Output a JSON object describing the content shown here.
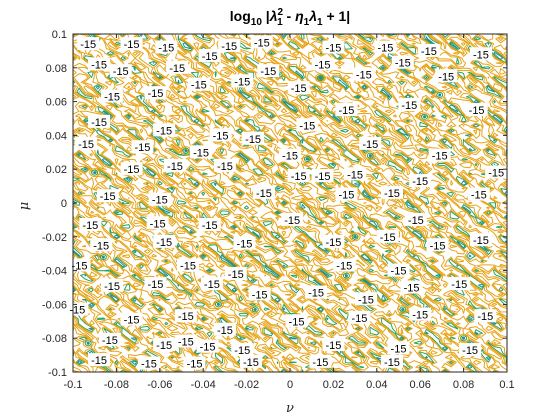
{
  "chart_data": {
    "type": "contour",
    "title": "log10 |λ1^2 - η1λ1 + 1|",
    "title_parts": {
      "log": "log",
      "log_sub": "10",
      "bar_open": " |",
      "lambda": "λ",
      "sub1": "1",
      "sup2": "2",
      "minus": " - ",
      "eta": "η",
      "sub1b": "1",
      "lambda2": "λ",
      "sub1c": "1",
      "rest": " + 1|"
    },
    "xlabel": "ν",
    "ylabel": "μ",
    "xlim": [
      -0.1,
      0.1
    ],
    "ylim": [
      -0.1,
      0.1
    ],
    "xticks": [
      "-0.1",
      "-0.08",
      "-0.06",
      "-0.04",
      "-0.02",
      "0",
      "0.02",
      "0.04",
      "0.06",
      "0.08",
      "0.1"
    ],
    "yticks": [
      "0.1",
      "0.08",
      "0.06",
      "0.04",
      "0.02",
      "0",
      "-0.02",
      "-0.04",
      "-0.06",
      "-0.08",
      "-0.1"
    ],
    "contour_level_label": "-15",
    "level_colors": {
      "low": "#1f8f8f",
      "mid": "#2ca25f",
      "high": "#e8a317"
    },
    "labels": [
      {
        "x": -0.093,
        "y": 0.094
      },
      {
        "x": -0.073,
        "y": 0.094
      },
      {
        "x": -0.057,
        "y": 0.092
      },
      {
        "x": -0.037,
        "y": 0.087
      },
      {
        "x": -0.028,
        "y": 0.093
      },
      {
        "x": -0.013,
        "y": 0.095
      },
      {
        "x": 0.02,
        "y": 0.092
      },
      {
        "x": 0.044,
        "y": 0.092
      },
      {
        "x": 0.064,
        "y": 0.09
      },
      {
        "x": 0.088,
        "y": 0.088
      },
      {
        "x": -0.088,
        "y": 0.082
      },
      {
        "x": -0.052,
        "y": 0.08
      },
      {
        "x": -0.042,
        "y": 0.07
      },
      {
        "x": -0.078,
        "y": 0.078
      },
      {
        "x": -0.01,
        "y": 0.078
      },
      {
        "x": 0.015,
        "y": 0.082
      },
      {
        "x": 0.034,
        "y": 0.076
      },
      {
        "x": 0.052,
        "y": 0.083
      },
      {
        "x": 0.072,
        "y": 0.075
      },
      {
        "x": -0.082,
        "y": 0.063
      },
      {
        "x": -0.062,
        "y": 0.065
      },
      {
        "x": -0.022,
        "y": 0.072
      },
      {
        "x": 0.004,
        "y": 0.068
      },
      {
        "x": -0.088,
        "y": 0.048
      },
      {
        "x": -0.058,
        "y": 0.043
      },
      {
        "x": -0.032,
        "y": 0.04
      },
      {
        "x": -0.017,
        "y": 0.038
      },
      {
        "x": 0.008,
        "y": 0.046
      },
      {
        "x": 0.026,
        "y": 0.055
      },
      {
        "x": 0.055,
        "y": 0.058
      },
      {
        "x": 0.086,
        "y": 0.055
      },
      {
        "x": -0.094,
        "y": 0.035
      },
      {
        "x": -0.068,
        "y": 0.033
      },
      {
        "x": -0.041,
        "y": 0.03
      },
      {
        "x": 0.0,
        "y": 0.028
      },
      {
        "x": 0.037,
        "y": 0.035
      },
      {
        "x": 0.069,
        "y": 0.028
      },
      {
        "x": -0.073,
        "y": 0.02
      },
      {
        "x": -0.053,
        "y": 0.022
      },
      {
        "x": -0.03,
        "y": 0.022
      },
      {
        "x": 0.004,
        "y": 0.016
      },
      {
        "x": 0.015,
        "y": 0.016
      },
      {
        "x": 0.03,
        "y": 0.017
      },
      {
        "x": 0.06,
        "y": 0.013
      },
      {
        "x": 0.095,
        "y": 0.018
      },
      {
        "x": -0.084,
        "y": 0.004
      },
      {
        "x": -0.06,
        "y": 0.002
      },
      {
        "x": -0.012,
        "y": 0.006
      },
      {
        "x": 0.026,
        "y": 0.005
      },
      {
        "x": 0.047,
        "y": 0.006
      },
      {
        "x": 0.087,
        "y": 0.005
      },
      {
        "x": -0.092,
        "y": -0.013
      },
      {
        "x": -0.061,
        "y": -0.012
      },
      {
        "x": -0.037,
        "y": -0.013
      },
      {
        "x": 0.001,
        "y": -0.01
      },
      {
        "x": 0.058,
        "y": -0.01
      },
      {
        "x": -0.087,
        "y": -0.025
      },
      {
        "x": -0.058,
        "y": -0.023
      },
      {
        "x": -0.021,
        "y": -0.024
      },
      {
        "x": 0.02,
        "y": -0.023
      },
      {
        "x": 0.045,
        "y": -0.02
      },
      {
        "x": 0.068,
        "y": -0.025
      },
      {
        "x": 0.088,
        "y": -0.022
      },
      {
        "x": -0.097,
        "y": -0.037
      },
      {
        "x": -0.047,
        "y": -0.037
      },
      {
        "x": -0.025,
        "y": -0.042
      },
      {
        "x": 0.025,
        "y": -0.037
      },
      {
        "x": 0.05,
        "y": -0.04
      },
      {
        "x": -0.082,
        "y": -0.049
      },
      {
        "x": -0.062,
        "y": -0.048
      },
      {
        "x": -0.036,
        "y": -0.048
      },
      {
        "x": -0.014,
        "y": -0.054
      },
      {
        "x": 0.012,
        "y": -0.053
      },
      {
        "x": 0.035,
        "y": -0.057
      },
      {
        "x": 0.056,
        "y": -0.05
      },
      {
        "x": 0.078,
        "y": -0.048
      },
      {
        "x": -0.098,
        "y": -0.063
      },
      {
        "x": -0.073,
        "y": -0.069
      },
      {
        "x": -0.048,
        "y": -0.067
      },
      {
        "x": -0.03,
        "y": -0.075
      },
      {
        "x": 0.003,
        "y": -0.07
      },
      {
        "x": 0.032,
        "y": -0.068
      },
      {
        "x": 0.06,
        "y": -0.066
      },
      {
        "x": 0.09,
        "y": -0.067
      },
      {
        "x": -0.083,
        "y": -0.081
      },
      {
        "x": -0.058,
        "y": -0.084
      },
      {
        "x": -0.048,
        "y": -0.082
      },
      {
        "x": -0.038,
        "y": -0.085
      },
      {
        "x": -0.022,
        "y": -0.087
      },
      {
        "x": 0.02,
        "y": -0.084
      },
      {
        "x": 0.05,
        "y": -0.086
      },
      {
        "x": 0.083,
        "y": -0.087
      },
      {
        "x": -0.088,
        "y": -0.093
      },
      {
        "x": -0.065,
        "y": -0.095
      },
      {
        "x": -0.044,
        "y": -0.095
      },
      {
        "x": -0.018,
        "y": -0.094
      },
      {
        "x": 0.014,
        "y": -0.094
      },
      {
        "x": 0.047,
        "y": -0.094
      }
    ],
    "minima": [
      {
        "x": -0.09,
        "y": 0.018
      },
      {
        "x": -0.086,
        "y": -0.032
      },
      {
        "x": -0.048,
        "y": 0.031
      },
      {
        "x": 0.008,
        "y": 0.026
      },
      {
        "x": 0.014,
        "y": 0.074
      },
      {
        "x": 0.037,
        "y": 0.028
      },
      {
        "x": 0.062,
        "y": 0.051
      },
      {
        "x": 0.069,
        "y": 0.064
      },
      {
        "x": 0.03,
        "y": -0.02
      },
      {
        "x": 0.046,
        "y": -0.023
      },
      {
        "x": 0.08,
        "y": -0.08
      },
      {
        "x": -0.04,
        "y": -0.095
      },
      {
        "x": -0.016,
        "y": -0.063
      },
      {
        "x": 0.026,
        "y": -0.043
      },
      {
        "x": -0.033,
        "y": -0.06
      },
      {
        "x": 0.052,
        "y": -0.063
      },
      {
        "x": -0.005,
        "y": 0.076
      },
      {
        "x": -0.093,
        "y": -0.083
      }
    ]
  }
}
